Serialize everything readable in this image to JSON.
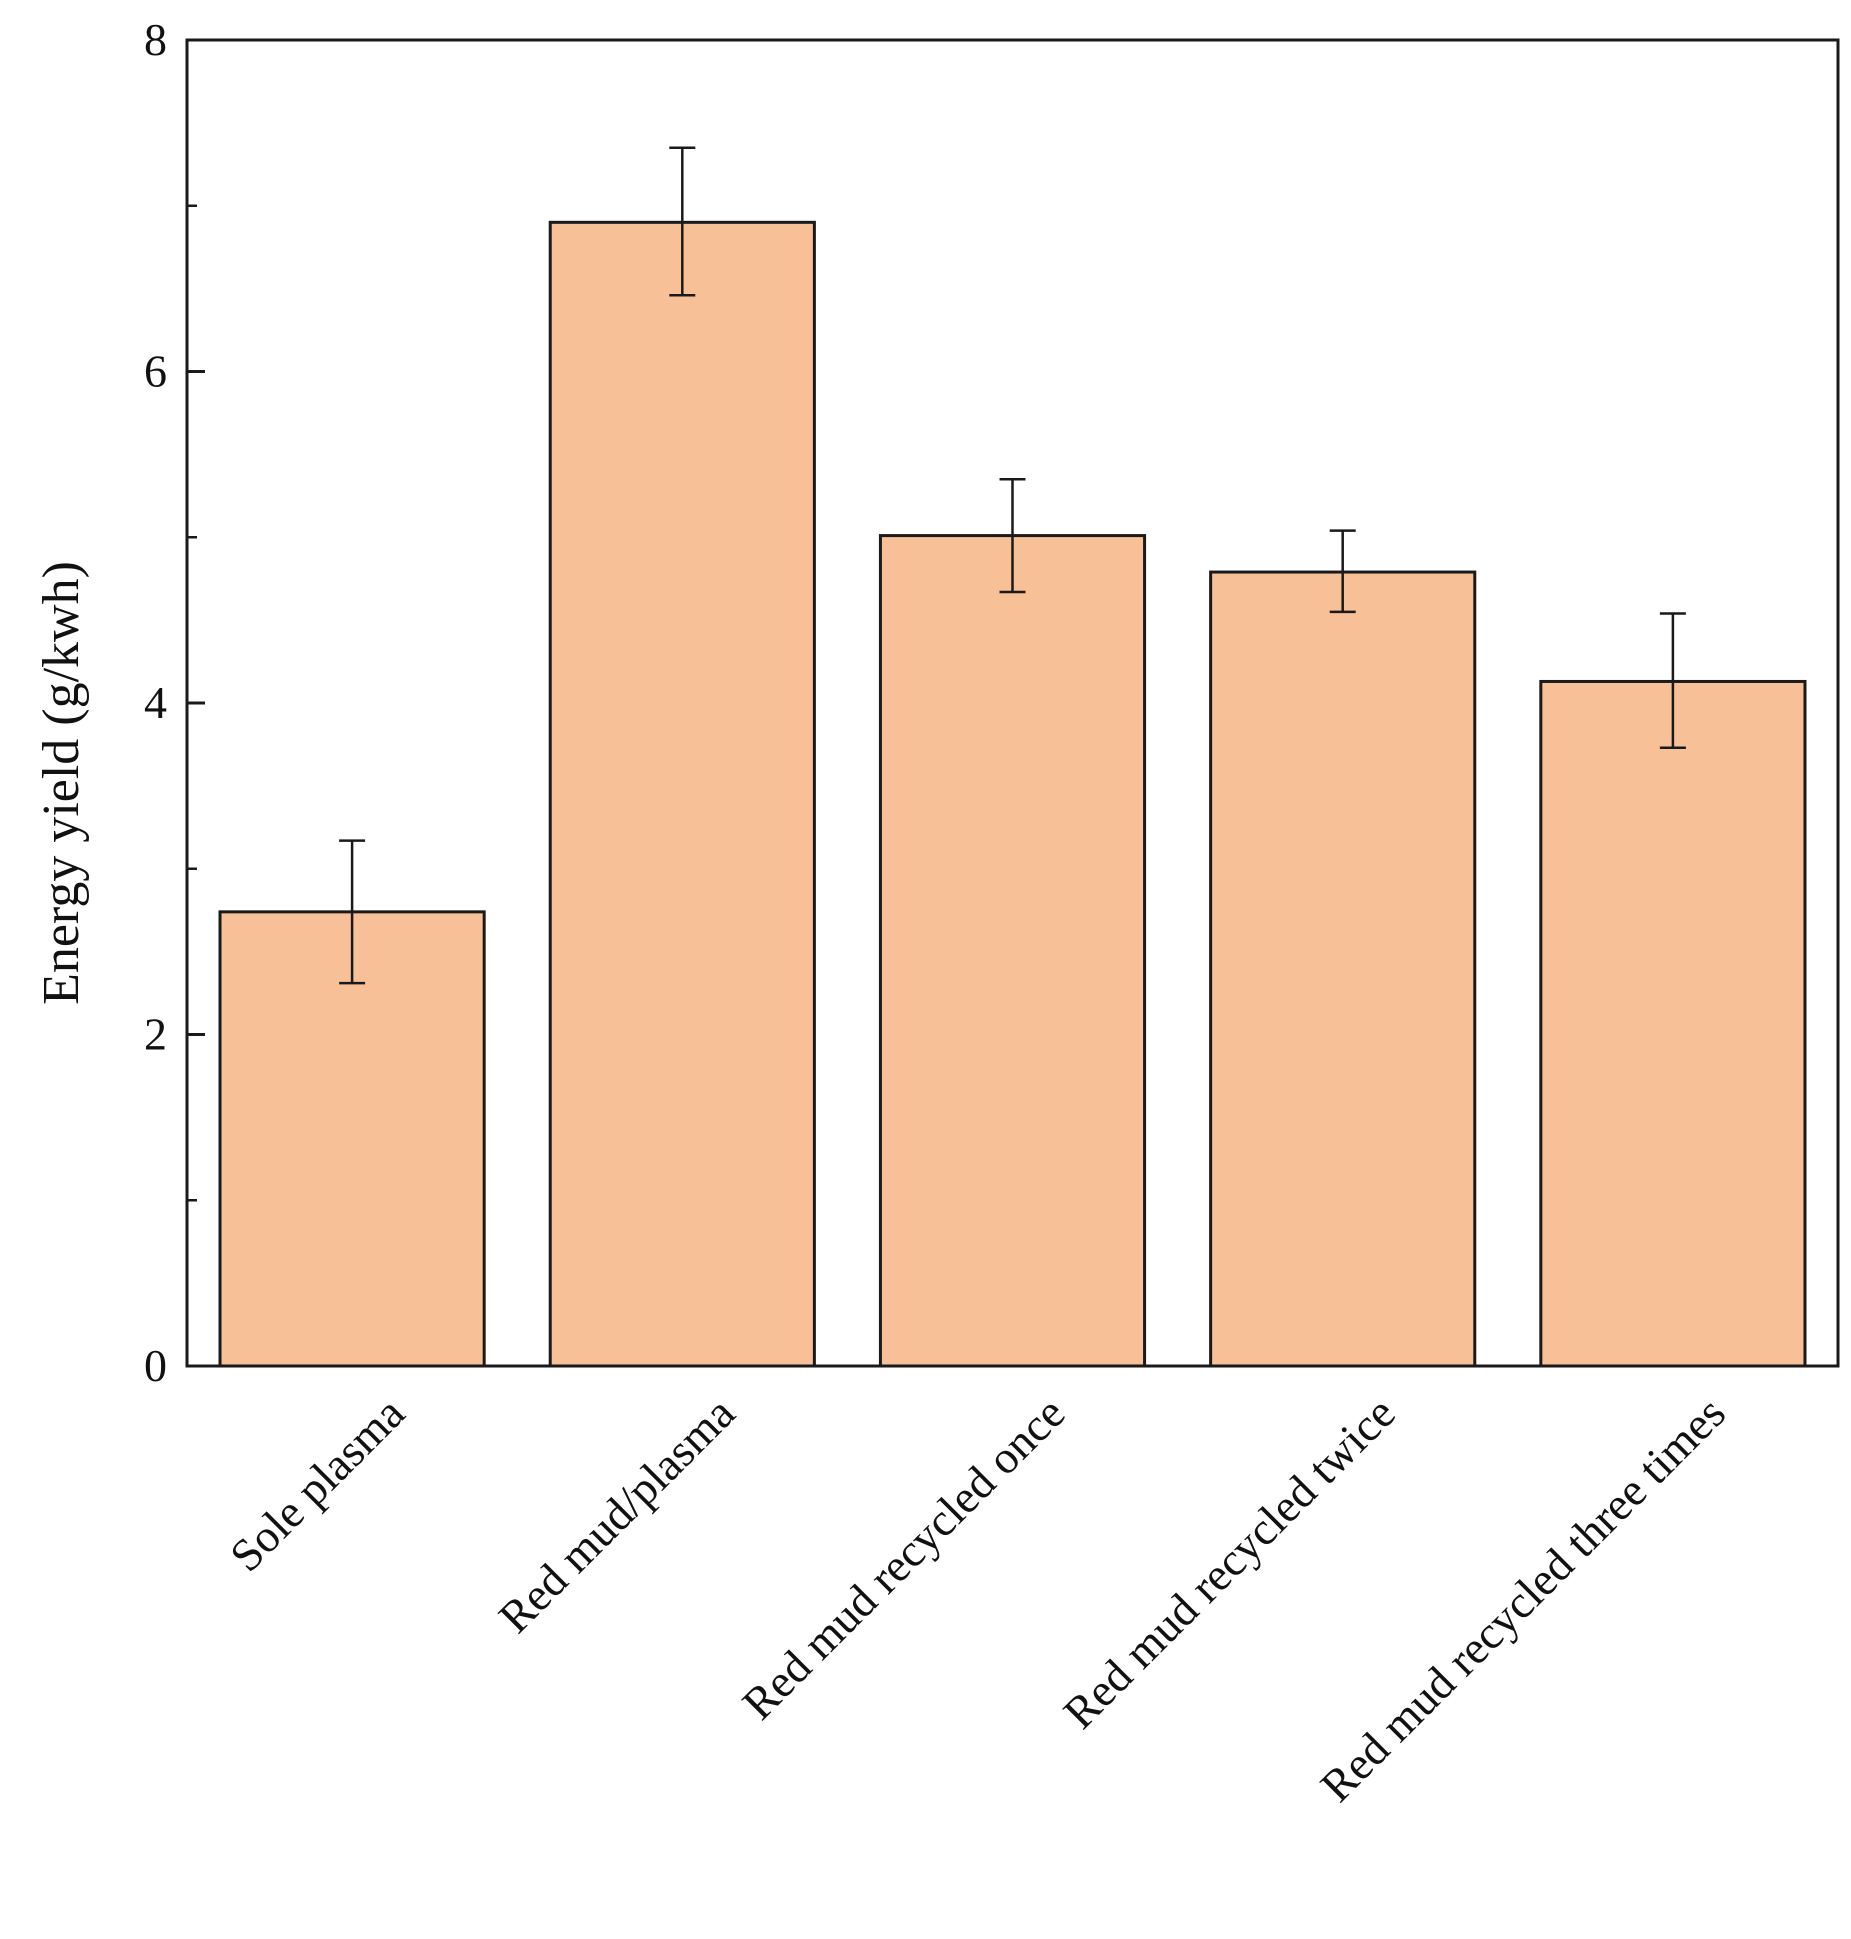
{
  "chart_data": {
    "type": "bar",
    "title": "",
    "xlabel": "",
    "ylabel": "Energy yield (g/kwh)",
    "ylim": [
      0,
      8
    ],
    "yticks": [
      0,
      2,
      4,
      6,
      8
    ],
    "minor_yticks": [
      1,
      3,
      5,
      7
    ],
    "grid": false,
    "categories": [
      "Sole plasma",
      "Red mud/plasma",
      "Red mud recycled once",
      "Red mud recycled twice",
      "Red mud recycled three times"
    ],
    "values": [
      2.74,
      6.9,
      5.01,
      4.79,
      4.13
    ],
    "error_low": [
      2.31,
      6.46,
      4.67,
      4.55,
      3.73
    ],
    "error_high": [
      3.17,
      7.35,
      5.35,
      5.04,
      4.54
    ],
    "bar_color": "#F8C096",
    "edge_color": "#1A1A1A"
  }
}
